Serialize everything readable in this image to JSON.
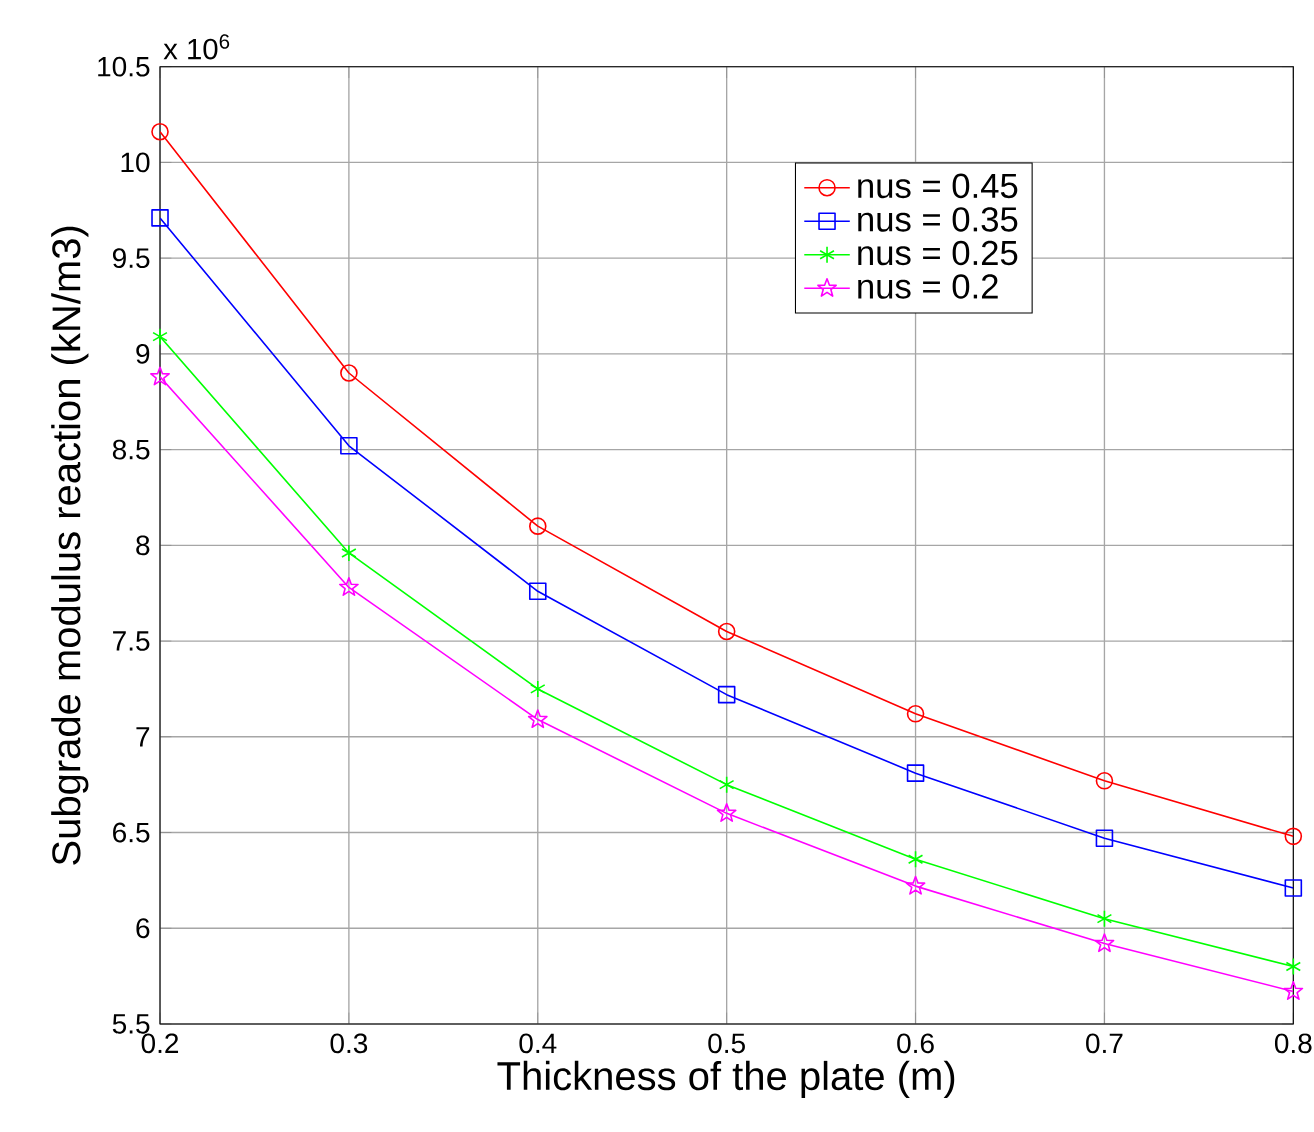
{
  "chart_data": {
    "type": "line",
    "xlabel": "Thickness of the plate (m)",
    "ylabel": "Subgrade modulus reaction (kN/m3)",
    "annotations": [
      "x 10$^{6}$"
    ],
    "x": [
      0.2,
      0.3,
      0.4,
      0.5,
      0.6,
      0.7,
      0.8
    ],
    "series": [
      {
        "name": "nus = 0.45",
        "color": "#ff0000",
        "marker": "circle",
        "values": [
          10.16,
          8.9,
          8.1,
          7.55,
          7.12,
          6.77,
          6.48
        ]
      },
      {
        "name": "nus = 0.35",
        "color": "#0000ff",
        "marker": "square",
        "values": [
          9.71,
          8.52,
          7.76,
          7.22,
          6.81,
          6.47,
          6.21
        ]
      },
      {
        "name": "nus = 0.25",
        "color": "#00ff00",
        "marker": "cross",
        "values": [
          9.09,
          7.96,
          7.25,
          6.75,
          6.36,
          6.05,
          5.8
        ]
      },
      {
        "name": "nus = 0.2",
        "color": "#ff00ff",
        "marker": "star",
        "values": [
          8.88,
          7.78,
          7.09,
          6.6,
          6.22,
          5.92,
          5.67
        ]
      }
    ],
    "xlim": [
      0.2,
      0.8
    ],
    "xticks": [
      0.2,
      0.3,
      0.4,
      0.5,
      0.6,
      0.7,
      0.8
    ],
    "ylim": [
      5.5,
      10.5
    ],
    "yticks": [
      5.5,
      6,
      6.5,
      7,
      7.5,
      8,
      8.5,
      9,
      9.5,
      10,
      10.5
    ],
    "grid": true,
    "legend": "top right",
    "line_style": "solid"
  }
}
